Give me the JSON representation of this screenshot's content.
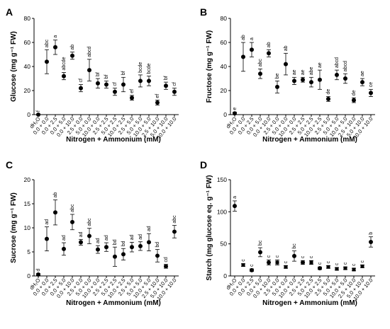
{
  "chart_data": [
    {
      "panel": "A",
      "type": "scatter",
      "ylabel": "Glucose (mg g⁻¹ FW)",
      "xlabel": "Nitrogen + Ammonium (mM)",
      "ylim": [
        0,
        80
      ],
      "yticks": [
        0,
        20,
        40,
        60,
        80
      ],
      "categories": [
        "dH₂O",
        "0.0 + 0.0",
        "0.0 + 2.5",
        "0.0 + 5.0",
        "0.0 + 10.0",
        "2.5 + 0.0",
        "5.0 + 0.0",
        "10.0 + 0.0",
        "2.5 + 2.5",
        "5.0 + 2.5",
        "10.0 + 2.5",
        "2.5 + 5.0",
        "5.0 + 5.0",
        "10.0 + 5.0",
        "2.5 + 10.0",
        "5.0 + 10.0",
        "10.0 + 10.0"
      ],
      "values": [
        0,
        44,
        56,
        32,
        49,
        22,
        37,
        26,
        25,
        19,
        25,
        14,
        28,
        28,
        10,
        24,
        19
      ],
      "errors": [
        0.5,
        10,
        6,
        3,
        3,
        3,
        9,
        4,
        3,
        3,
        6,
        2,
        5,
        4,
        2,
        3,
        3
      ],
      "letters": [
        "f",
        "abc",
        "a",
        "abcde",
        "ab",
        "cf",
        "abcd",
        "bf",
        "bf",
        "cf",
        "bf",
        "ef",
        "bcde",
        "bcde",
        "ef",
        "bf",
        "cf"
      ]
    },
    {
      "panel": "B",
      "type": "scatter",
      "ylabel": "Fructose (mg g⁻¹ FW)",
      "xlabel": "Nitrogen + Ammonium (mM)",
      "ylim": [
        0,
        80
      ],
      "yticks": [
        0,
        20,
        40,
        60,
        80
      ],
      "categories": [
        "dH₂O",
        "0.0 + 0.0",
        "0.0 + 2.5",
        "0.0 + 5.0",
        "0.0 + 10.0",
        "2.5 + 0.0",
        "5.0 + 0.0",
        "10.0 + 0.0",
        "2.5 + 2.5",
        "5.0 + 2.5",
        "10.0 + 2.5",
        "2.5 + 5.0",
        "5.0 + 5.0",
        "10.0 + 5.0",
        "2.5 + 10.0",
        "5.0 + 10.0",
        "10.0 + 10.0"
      ],
      "values": [
        1,
        48,
        54,
        34,
        51,
        23,
        42,
        28,
        29,
        27,
        29,
        13,
        33,
        30,
        12,
        27,
        18
      ],
      "errors": [
        1,
        12,
        6,
        4,
        3,
        5,
        9,
        3,
        2,
        4,
        8,
        2,
        4,
        4,
        2,
        3,
        3
      ],
      "letters": [
        "e",
        "ab",
        "a",
        "abc",
        "ab",
        "be",
        "ab",
        "ae",
        "ae",
        "abe",
        "ae",
        "de",
        "abcd",
        "abcd",
        "de",
        "ae",
        "ce"
      ]
    },
    {
      "panel": "C",
      "type": "scatter",
      "ylabel": "Sucrose (mg g⁻¹ FW)",
      "xlabel": "Nitrogen + Ammonium (mM)",
      "ylim": [
        0,
        20
      ],
      "yticks": [
        0,
        5,
        10,
        15,
        20
      ],
      "categories": [
        "dH₂O",
        "0.0 + 0.0",
        "0.0 + 2.5",
        "0.0 + 5.0",
        "0.0 + 10.0",
        "2.5 + 0.0",
        "5.0 + 0.0",
        "10.0 + 0.0",
        "2.5 + 2.5",
        "5.0 + 2.5",
        "10.0 + 2.5",
        "2.5 + 5.0",
        "5.0 + 5.0",
        "10.0 + 5.0",
        "2.5 + 10.0",
        "5.0 + 10.0",
        "10.0 + 10.0"
      ],
      "values": [
        0.3,
        7.7,
        13.2,
        5.6,
        11.2,
        7.0,
        8.3,
        5.5,
        6.0,
        4.0,
        4.5,
        6.0,
        6.2,
        7.0,
        4.2,
        2.0,
        9.2
      ],
      "errors": [
        0.2,
        2.5,
        2.6,
        1.3,
        1.6,
        0.6,
        1.6,
        0.8,
        0.9,
        2.0,
        1.2,
        1.0,
        0.9,
        1.8,
        1.3,
        0.4,
        1.3
      ],
      "letters": [
        "d",
        "ad",
        "ab",
        "ad",
        "abc",
        "ad",
        "abc",
        "ad",
        "ad",
        "bd",
        "bd",
        "ad",
        "ad",
        "ad",
        "bd",
        "cd",
        "abc"
      ]
    },
    {
      "panel": "D",
      "type": "scatter",
      "ylabel": "Starch (mg glucose eq. g⁻¹ FW)",
      "xlabel": "Nitrogen + Ammonium (mM)",
      "ylim": [
        0,
        150
      ],
      "yticks": [
        0,
        50,
        100,
        150
      ],
      "categories": [
        "dH₂O",
        "0.0 + 0.0",
        "0.0 + 2.5",
        "0.0 + 5.0",
        "0.0 + 10.0",
        "2.5 + 0.0",
        "5.0 + 0.0",
        "10.0 + 0.0",
        "2.5 + 2.5",
        "5.0 + 2.5",
        "10.0 + 2.5",
        "2.5 + 5.0",
        "5.0 + 5.0",
        "10.0 + 5.0",
        "2.5 + 10.0",
        "5.0 + 10.0",
        "10.0 + 10.0"
      ],
      "values": [
        109,
        17,
        9,
        37,
        21,
        21,
        14,
        31,
        21,
        21,
        12,
        14,
        11,
        12,
        10,
        15,
        53
      ],
      "errors": [
        8,
        2,
        2,
        7,
        4,
        4,
        2,
        8,
        3,
        3,
        2,
        2,
        2,
        2,
        2,
        2,
        8
      ],
      "letters": [
        "a",
        "c",
        "c",
        "bc",
        "c",
        "c",
        "c",
        "bc",
        "c",
        "c",
        "c",
        "c",
        "c",
        "c",
        "c",
        "c",
        "b"
      ]
    }
  ]
}
